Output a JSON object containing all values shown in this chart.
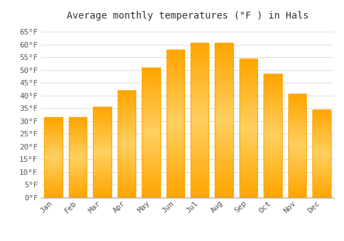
{
  "title": "Average monthly temperatures (°F ) in Hals",
  "months": [
    "Jan",
    "Feb",
    "Mar",
    "Apr",
    "May",
    "Jun",
    "Jul",
    "Aug",
    "Sep",
    "Oct",
    "Nov",
    "Dec"
  ],
  "values": [
    31.5,
    31.5,
    35.5,
    42,
    51,
    58,
    60.5,
    60.5,
    54.5,
    48.5,
    40.5,
    34.5
  ],
  "bar_color_center": "#FFD060",
  "bar_color_edge": "#FFA500",
  "background_color": "#ffffff",
  "grid_color": "#dddddd",
  "ylim": [
    0,
    68
  ],
  "yticks": [
    0,
    5,
    10,
    15,
    20,
    25,
    30,
    35,
    40,
    45,
    50,
    55,
    60,
    65
  ],
  "ytick_labels": [
    "0°F",
    "5°F",
    "10°F",
    "15°F",
    "20°F",
    "25°F",
    "30°F",
    "35°F",
    "40°F",
    "45°F",
    "50°F",
    "55°F",
    "60°F",
    "65°F"
  ],
  "title_fontsize": 10,
  "tick_fontsize": 8,
  "font_family": "monospace",
  "figsize": [
    5.0,
    3.5
  ],
  "dpi": 100
}
